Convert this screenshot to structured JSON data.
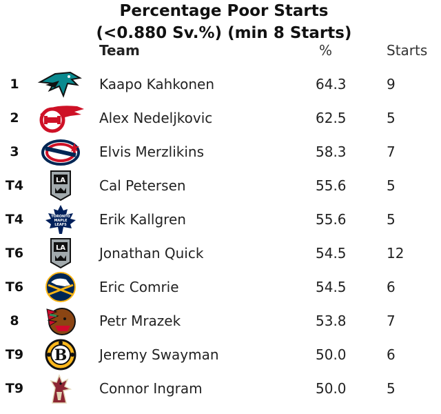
{
  "title": {
    "line1": "Percentage Poor Starts",
    "line2": "(<0.880 Sv.%) (min 8 Starts)"
  },
  "headers": {
    "team": "Team",
    "pct": "%",
    "starts": "Starts"
  },
  "colors": {
    "text": "#222222",
    "sharks_teal": "#0A8A8F",
    "red_wings_red": "#CE1126",
    "blue_jackets_navy": "#002654",
    "kings_black": "#111111",
    "kings_silver": "#A2AAAD",
    "leafs_blue": "#00205B",
    "sabres_navy": "#002654",
    "sabres_gold": "#FCB514",
    "blackhawks_red": "#CF0A2C",
    "bruins_gold": "#FFB81C",
    "coyotes_brick": "#8C2633"
  },
  "chart_data": {
    "type": "table",
    "title": "Percentage Poor Starts (<0.880 Sv.%) (min 8 Starts)",
    "columns": [
      "",
      "Team",
      "%",
      "Starts"
    ],
    "rows": [
      {
        "rank": "1",
        "team_icon": "sharks-logo-icon",
        "player": "Kaapo Kahkonen",
        "pct": "64.3",
        "starts": "9"
      },
      {
        "rank": "2",
        "team_icon": "red-wings-logo-icon",
        "player": "Alex Nedeljkovic",
        "pct": "62.5",
        "starts": "5"
      },
      {
        "rank": "3",
        "team_icon": "blue-jackets-logo-icon",
        "player": "Elvis Merzlikins",
        "pct": "58.3",
        "starts": "7"
      },
      {
        "rank": "T4",
        "team_icon": "kings-logo-icon",
        "player": "Cal Petersen",
        "pct": "55.6",
        "starts": "5"
      },
      {
        "rank": "T4",
        "team_icon": "maple-leafs-logo-icon",
        "player": "Erik Kallgren",
        "pct": "55.6",
        "starts": "5"
      },
      {
        "rank": "T6",
        "team_icon": "kings-logo-icon",
        "player": "Jonathan Quick",
        "pct": "54.5",
        "starts": "12"
      },
      {
        "rank": "T6",
        "team_icon": "sabres-logo-icon",
        "player": "Eric Comrie",
        "pct": "54.5",
        "starts": "6"
      },
      {
        "rank": "8",
        "team_icon": "blackhawks-logo-icon",
        "player": "Petr Mrazek",
        "pct": "53.8",
        "starts": "7"
      },
      {
        "rank": "T9",
        "team_icon": "bruins-logo-icon",
        "player": "Jeremy Swayman",
        "pct": "50.0",
        "starts": "6"
      },
      {
        "rank": "T9",
        "team_icon": "coyotes-logo-icon",
        "player": "Connor Ingram",
        "pct": "50.0",
        "starts": "5"
      }
    ]
  }
}
